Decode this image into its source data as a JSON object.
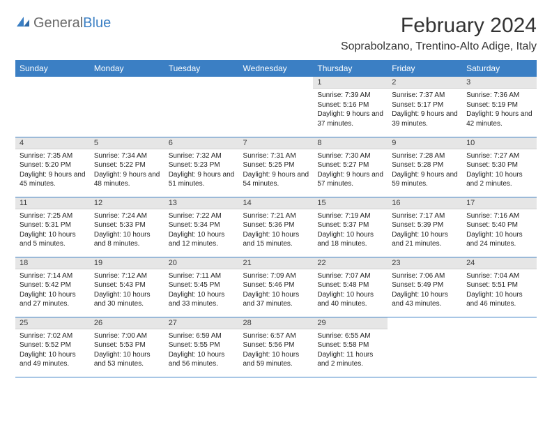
{
  "logo": {
    "prefix": "General",
    "suffix": "Blue"
  },
  "title": "February 2024",
  "location": "Soprabolzano, Trentino-Alto Adige, Italy",
  "colors": {
    "accent": "#3b7fc4",
    "header_text": "#ffffff",
    "daynum_bg": "#e6e6e6",
    "body_text": "#222222",
    "title_text": "#333333"
  },
  "weekdays": [
    "Sunday",
    "Monday",
    "Tuesday",
    "Wednesday",
    "Thursday",
    "Friday",
    "Saturday"
  ],
  "lead_blanks": 4,
  "days": [
    {
      "n": 1,
      "sr": "7:39 AM",
      "ss": "5:16 PM",
      "dl": "9 hours and 37 minutes."
    },
    {
      "n": 2,
      "sr": "7:37 AM",
      "ss": "5:17 PM",
      "dl": "9 hours and 39 minutes."
    },
    {
      "n": 3,
      "sr": "7:36 AM",
      "ss": "5:19 PM",
      "dl": "9 hours and 42 minutes."
    },
    {
      "n": 4,
      "sr": "7:35 AM",
      "ss": "5:20 PM",
      "dl": "9 hours and 45 minutes."
    },
    {
      "n": 5,
      "sr": "7:34 AM",
      "ss": "5:22 PM",
      "dl": "9 hours and 48 minutes."
    },
    {
      "n": 6,
      "sr": "7:32 AM",
      "ss": "5:23 PM",
      "dl": "9 hours and 51 minutes."
    },
    {
      "n": 7,
      "sr": "7:31 AM",
      "ss": "5:25 PM",
      "dl": "9 hours and 54 minutes."
    },
    {
      "n": 8,
      "sr": "7:30 AM",
      "ss": "5:27 PM",
      "dl": "9 hours and 57 minutes."
    },
    {
      "n": 9,
      "sr": "7:28 AM",
      "ss": "5:28 PM",
      "dl": "9 hours and 59 minutes."
    },
    {
      "n": 10,
      "sr": "7:27 AM",
      "ss": "5:30 PM",
      "dl": "10 hours and 2 minutes."
    },
    {
      "n": 11,
      "sr": "7:25 AM",
      "ss": "5:31 PM",
      "dl": "10 hours and 5 minutes."
    },
    {
      "n": 12,
      "sr": "7:24 AM",
      "ss": "5:33 PM",
      "dl": "10 hours and 8 minutes."
    },
    {
      "n": 13,
      "sr": "7:22 AM",
      "ss": "5:34 PM",
      "dl": "10 hours and 12 minutes."
    },
    {
      "n": 14,
      "sr": "7:21 AM",
      "ss": "5:36 PM",
      "dl": "10 hours and 15 minutes."
    },
    {
      "n": 15,
      "sr": "7:19 AM",
      "ss": "5:37 PM",
      "dl": "10 hours and 18 minutes."
    },
    {
      "n": 16,
      "sr": "7:17 AM",
      "ss": "5:39 PM",
      "dl": "10 hours and 21 minutes."
    },
    {
      "n": 17,
      "sr": "7:16 AM",
      "ss": "5:40 PM",
      "dl": "10 hours and 24 minutes."
    },
    {
      "n": 18,
      "sr": "7:14 AM",
      "ss": "5:42 PM",
      "dl": "10 hours and 27 minutes."
    },
    {
      "n": 19,
      "sr": "7:12 AM",
      "ss": "5:43 PM",
      "dl": "10 hours and 30 minutes."
    },
    {
      "n": 20,
      "sr": "7:11 AM",
      "ss": "5:45 PM",
      "dl": "10 hours and 33 minutes."
    },
    {
      "n": 21,
      "sr": "7:09 AM",
      "ss": "5:46 PM",
      "dl": "10 hours and 37 minutes."
    },
    {
      "n": 22,
      "sr": "7:07 AM",
      "ss": "5:48 PM",
      "dl": "10 hours and 40 minutes."
    },
    {
      "n": 23,
      "sr": "7:06 AM",
      "ss": "5:49 PM",
      "dl": "10 hours and 43 minutes."
    },
    {
      "n": 24,
      "sr": "7:04 AM",
      "ss": "5:51 PM",
      "dl": "10 hours and 46 minutes."
    },
    {
      "n": 25,
      "sr": "7:02 AM",
      "ss": "5:52 PM",
      "dl": "10 hours and 49 minutes."
    },
    {
      "n": 26,
      "sr": "7:00 AM",
      "ss": "5:53 PM",
      "dl": "10 hours and 53 minutes."
    },
    {
      "n": 27,
      "sr": "6:59 AM",
      "ss": "5:55 PM",
      "dl": "10 hours and 56 minutes."
    },
    {
      "n": 28,
      "sr": "6:57 AM",
      "ss": "5:56 PM",
      "dl": "10 hours and 59 minutes."
    },
    {
      "n": 29,
      "sr": "6:55 AM",
      "ss": "5:58 PM",
      "dl": "11 hours and 2 minutes."
    }
  ],
  "labels": {
    "sunrise": "Sunrise:",
    "sunset": "Sunset:",
    "daylight": "Daylight:"
  }
}
